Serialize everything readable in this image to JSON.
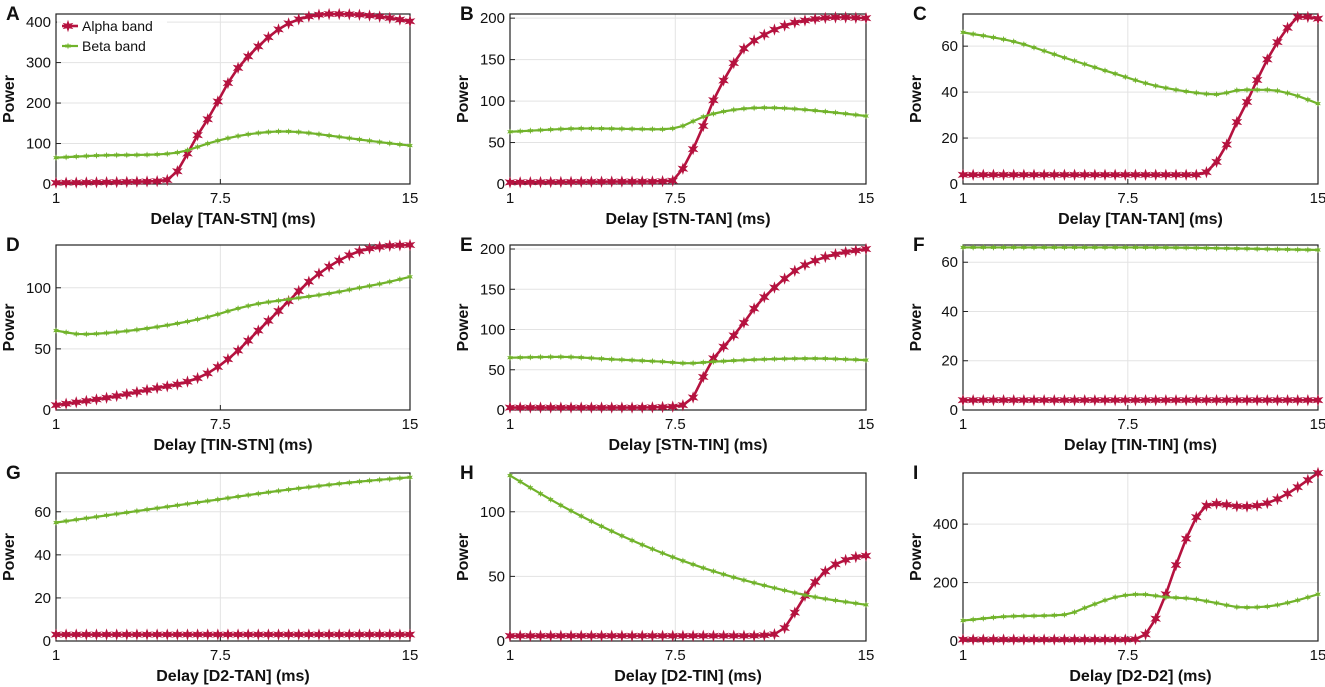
{
  "figure": {
    "colors": {
      "alpha": "#b5123f",
      "beta": "#71b32b",
      "axis": "#222222",
      "grid": "#e3e3e3"
    },
    "legend": {
      "placement": "top-left of panel A",
      "alpha_label": "Alpha band",
      "beta_label": "Beta band"
    },
    "x_ticks": [
      "1",
      "7.5",
      "15"
    ]
  },
  "chart_data": [
    {
      "type": "line",
      "panel": "A",
      "title": "",
      "xlabel": "Delay [TAN-STN] (ms)",
      "ylabel": "Power",
      "xlim": [
        1,
        15
      ],
      "ylim": [
        0,
        420
      ],
      "yticks": [
        0,
        100,
        200,
        300,
        400
      ],
      "x": [
        1,
        15
      ],
      "series": [
        {
          "name": "Alpha band",
          "points": [
            [
              1,
              3
            ],
            [
              5,
              7
            ],
            [
              5.4,
              10
            ],
            [
              5.9,
              40
            ],
            [
              6.4,
              100
            ],
            [
              7,
              160
            ],
            [
              7.5,
              215
            ],
            [
              8,
              270
            ],
            [
              9,
              340
            ],
            [
              10,
              390
            ],
            [
              11,
              414
            ],
            [
              12,
              420
            ],
            [
              13,
              418
            ],
            [
              14,
              412
            ],
            [
              15,
              402
            ]
          ]
        },
        {
          "name": "Beta band",
          "points": [
            [
              1,
              65
            ],
            [
              3,
              71
            ],
            [
              5,
              73
            ],
            [
              6,
              80
            ],
            [
              7,
              100
            ],
            [
              8,
              116
            ],
            [
              9,
              126
            ],
            [
              10,
              130
            ],
            [
              11,
              126
            ],
            [
              12,
              118
            ],
            [
              13,
              110
            ],
            [
              14,
              102
            ],
            [
              15,
              95
            ]
          ]
        }
      ]
    },
    {
      "type": "line",
      "panel": "B",
      "title": "",
      "xlabel": "Delay [STN-TAN] (ms)",
      "ylabel": "Power",
      "xlim": [
        1,
        15
      ],
      "ylim": [
        0,
        205
      ],
      "yticks": [
        0,
        50,
        100,
        150,
        200
      ],
      "x": [
        1,
        15
      ],
      "series": [
        {
          "name": "Alpha band",
          "points": [
            [
              1,
              2
            ],
            [
              6,
              3
            ],
            [
              7.4,
              4
            ],
            [
              8,
              30
            ],
            [
              8.6,
              70
            ],
            [
              9.1,
              108
            ],
            [
              9.6,
              135
            ],
            [
              10.1,
              160
            ],
            [
              11,
              180
            ],
            [
              12,
              193
            ],
            [
              13,
              199
            ],
            [
              14,
              201
            ],
            [
              15,
              200
            ]
          ]
        },
        {
          "name": "Beta band",
          "points": [
            [
              1,
              63
            ],
            [
              4,
              67
            ],
            [
              7,
              66
            ],
            [
              7.8,
              70
            ],
            [
              8.5,
              80
            ],
            [
              9.5,
              88
            ],
            [
              11,
              92
            ],
            [
              12,
              91
            ],
            [
              13.5,
              87
            ],
            [
              15,
              82
            ]
          ]
        }
      ]
    },
    {
      "type": "line",
      "panel": "C",
      "title": "",
      "xlabel": "Delay [TAN-TAN] (ms)",
      "ylabel": "Power",
      "xlim": [
        1,
        15
      ],
      "ylim": [
        0,
        74
      ],
      "yticks": [
        0,
        20,
        40,
        60
      ],
      "x": [
        1,
        15
      ],
      "series": [
        {
          "name": "Alpha band",
          "points": [
            [
              1,
              4
            ],
            [
              10.3,
              4
            ],
            [
              10.8,
              7
            ],
            [
              11.3,
              15
            ],
            [
              11.8,
              27
            ],
            [
              12.3,
              38
            ],
            [
              12.8,
              50
            ],
            [
              13.3,
              60
            ],
            [
              13.8,
              68
            ],
            [
              14.3,
              73
            ],
            [
              15,
              72
            ]
          ]
        },
        {
          "name": "Beta band",
          "points": [
            [
              1,
              66
            ],
            [
              3,
              62
            ],
            [
              5,
              55
            ],
            [
              7,
              48
            ],
            [
              8.5,
              43
            ],
            [
              10,
              40
            ],
            [
              11,
              39
            ],
            [
              12,
              41
            ],
            [
              13,
              41
            ],
            [
              14,
              39
            ],
            [
              15,
              35
            ]
          ]
        }
      ]
    },
    {
      "type": "line",
      "panel": "D",
      "title": "",
      "xlabel": "Delay [TIN-STN] (ms)",
      "ylabel": "Power",
      "xlim": [
        1,
        15
      ],
      "ylim": [
        0,
        135
      ],
      "yticks": [
        0,
        50,
        100
      ],
      "x": [
        1,
        15
      ],
      "series": [
        {
          "name": "Alpha band",
          "points": [
            [
              1,
              4
            ],
            [
              3,
              10
            ],
            [
              5,
              18
            ],
            [
              6,
              22
            ],
            [
              7,
              30
            ],
            [
              8,
              45
            ],
            [
              9,
              65
            ],
            [
              10,
              85
            ],
            [
              11,
              105
            ],
            [
              12,
              120
            ],
            [
              13,
              130
            ],
            [
              14,
              134
            ],
            [
              15,
              135
            ]
          ]
        },
        {
          "name": "Beta band",
          "points": [
            [
              1,
              65
            ],
            [
              2,
              62
            ],
            [
              3,
              63
            ],
            [
              5,
              68
            ],
            [
              7,
              76
            ],
            [
              8,
              82
            ],
            [
              9,
              87
            ],
            [
              10,
              90
            ],
            [
              12,
              96
            ],
            [
              13,
              100
            ],
            [
              14,
              104
            ],
            [
              15,
              109
            ]
          ]
        }
      ]
    },
    {
      "type": "line",
      "panel": "E",
      "title": "",
      "xlabel": "Delay [STN-TIN] (ms)",
      "ylabel": "Power",
      "xlim": [
        1,
        15
      ],
      "ylim": [
        0,
        205
      ],
      "yticks": [
        0,
        50,
        100,
        150,
        200
      ],
      "x": [
        1,
        15
      ],
      "series": [
        {
          "name": "Alpha band",
          "points": [
            [
              1,
              3
            ],
            [
              6,
              3
            ],
            [
              7.2,
              4
            ],
            [
              7.8,
              6
            ],
            [
              8.3,
              20
            ],
            [
              8.8,
              55
            ],
            [
              9.3,
              75
            ],
            [
              10,
              100
            ],
            [
              10.7,
              130
            ],
            [
              11.5,
              155
            ],
            [
              12.3,
              175
            ],
            [
              13.2,
              188
            ],
            [
              14,
              195
            ],
            [
              15,
              200
            ]
          ]
        },
        {
          "name": "Beta band",
          "points": [
            [
              1,
              65
            ],
            [
              3,
              66
            ],
            [
              5,
              63
            ],
            [
              7,
              60
            ],
            [
              8,
              58
            ],
            [
              9,
              60
            ],
            [
              11,
              63
            ],
            [
              13,
              64
            ],
            [
              15,
              62
            ]
          ]
        }
      ]
    },
    {
      "type": "line",
      "panel": "F",
      "title": "",
      "xlabel": "Delay [TIN-TIN] (ms)",
      "ylabel": "Power",
      "xlim": [
        1,
        15
      ],
      "ylim": [
        0,
        67
      ],
      "yticks": [
        0,
        20,
        40,
        60
      ],
      "x": [
        1,
        15
      ],
      "series": [
        {
          "name": "Alpha band",
          "points": [
            [
              1,
              4
            ],
            [
              15,
              4
            ]
          ]
        },
        {
          "name": "Beta band",
          "points": [
            [
              1,
              66
            ],
            [
              8,
              66
            ],
            [
              15,
              65
            ]
          ]
        }
      ]
    },
    {
      "type": "line",
      "panel": "G",
      "title": "",
      "xlabel": "Delay [D2-TAN] (ms)",
      "ylabel": "Power",
      "xlim": [
        1,
        15
      ],
      "ylim": [
        0,
        78
      ],
      "yticks": [
        0,
        20,
        40,
        60
      ],
      "x": [
        1,
        15
      ],
      "series": [
        {
          "name": "Alpha band",
          "points": [
            [
              1,
              3
            ],
            [
              15,
              3
            ]
          ]
        },
        {
          "name": "Beta band",
          "points": [
            [
              1,
              55
            ],
            [
              4,
              60
            ],
            [
              7,
              65
            ],
            [
              10,
              70
            ],
            [
              13,
              74
            ],
            [
              15,
              76
            ]
          ]
        }
      ]
    },
    {
      "type": "line",
      "panel": "H",
      "title": "",
      "xlabel": "Delay [D2-TIN] (ms)",
      "ylabel": "Power",
      "xlim": [
        1,
        15
      ],
      "ylim": [
        0,
        130
      ],
      "yticks": [
        0,
        50,
        100
      ],
      "x": [
        1,
        15
      ],
      "series": [
        {
          "name": "Alpha band",
          "points": [
            [
              1,
              4
            ],
            [
              10,
              4
            ],
            [
              11.3,
              5
            ],
            [
              11.7,
              8
            ],
            [
              12.2,
              22
            ],
            [
              12.6,
              35
            ],
            [
              13.1,
              48
            ],
            [
              13.6,
              57
            ],
            [
              14.1,
              62
            ],
            [
              14.6,
              65
            ],
            [
              15,
              66
            ]
          ]
        },
        {
          "name": "Beta band",
          "points": [
            [
              1,
              128
            ],
            [
              3,
              105
            ],
            [
              5,
              85
            ],
            [
              7,
              68
            ],
            [
              9,
              54
            ],
            [
              11,
              43
            ],
            [
              13,
              34
            ],
            [
              15,
              28
            ]
          ]
        }
      ]
    },
    {
      "type": "line",
      "panel": "I",
      "title": "",
      "xlabel": "Delay [D2-D2] (ms)",
      "ylabel": "Power",
      "xlim": [
        1,
        15
      ],
      "ylim": [
        0,
        575
      ],
      "yticks": [
        0,
        200,
        400
      ],
      "x": [
        1,
        15
      ],
      "series": [
        {
          "name": "Alpha band",
          "points": [
            [
              1,
              5
            ],
            [
              7.5,
              5
            ],
            [
              8,
              10
            ],
            [
              8.5,
              60
            ],
            [
              9,
              160
            ],
            [
              9.4,
              260
            ],
            [
              9.9,
              370
            ],
            [
              10.4,
              450
            ],
            [
              11,
              470
            ],
            [
              11.5,
              465
            ],
            [
              12,
              460
            ],
            [
              12.5,
              462
            ],
            [
              13,
              472
            ],
            [
              13.5,
              490
            ],
            [
              14,
              515
            ],
            [
              14.5,
              545
            ],
            [
              15,
              575
            ]
          ]
        },
        {
          "name": "Beta band",
          "points": [
            [
              1,
              70
            ],
            [
              3,
              85
            ],
            [
              5,
              90
            ],
            [
              6,
              120
            ],
            [
              7,
              150
            ],
            [
              8,
              160
            ],
            [
              9,
              150
            ],
            [
              10,
              145
            ],
            [
              11,
              130
            ],
            [
              12,
              115
            ],
            [
              13,
              118
            ],
            [
              14,
              135
            ],
            [
              15,
              160
            ]
          ]
        }
      ]
    }
  ]
}
